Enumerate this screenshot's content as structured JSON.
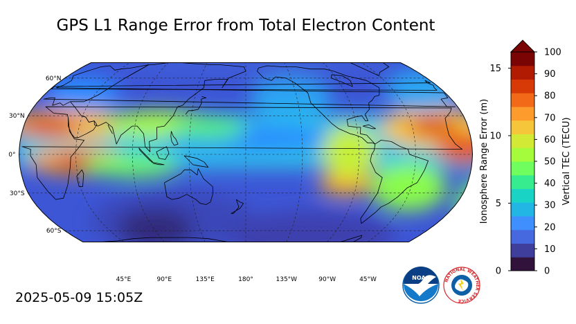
{
  "title": "GPS L1 Range Error from Total Electron Content",
  "timestamp": "2025-05-09 15:05Z",
  "map": {
    "projection": "Robinson",
    "central_longitude": 180,
    "lat_labels": [
      "60°N",
      "30°N",
      "0°",
      "30°S",
      "60°S"
    ],
    "lat_values": [
      60,
      30,
      0,
      -30,
      -60
    ],
    "lon_labels": [
      "45°E",
      "90°E",
      "135°E",
      "180°",
      "135°W",
      "90°W",
      "45°W"
    ],
    "lon_values": [
      45,
      90,
      135,
      180,
      -135,
      -90,
      -45
    ],
    "ocean_color": "#3d56d6",
    "colormap": "turbo"
  },
  "colorbar": {
    "left_axis_label": "Ionosphere Range Error (m)",
    "left_ticks": [
      "0",
      "5",
      "10",
      "15"
    ],
    "left_values": [
      0,
      5,
      10,
      15
    ],
    "right_axis_label": "Vertical TEC (TECU)",
    "right_ticks": [
      "0",
      "10",
      "20",
      "30",
      "40",
      "50",
      "60",
      "70",
      "80",
      "90",
      "100"
    ],
    "right_values": [
      0,
      10,
      20,
      30,
      40,
      50,
      60,
      70,
      80,
      90,
      100
    ],
    "range_tecu": [
      0,
      100
    ],
    "range_m": [
      0,
      16.2
    ],
    "extend": "max",
    "colors": [
      "#30123b",
      "#3f3e9c",
      "#4669e0",
      "#3f90fe",
      "#22b6e5",
      "#19d4c4",
      "#36ec8e",
      "#6ffe5d",
      "#a5fc3c",
      "#d2e935",
      "#f6c63a",
      "#fe9b2d",
      "#f26a17",
      "#d83a07",
      "#b11b01",
      "#7a0403"
    ]
  },
  "logos": {
    "noaa": {
      "text": "NOAA",
      "color": "#0d5fa6"
    },
    "nws": {
      "text": "NATIONAL WEATHER SERVICE",
      "color": "#d7262b"
    }
  }
}
